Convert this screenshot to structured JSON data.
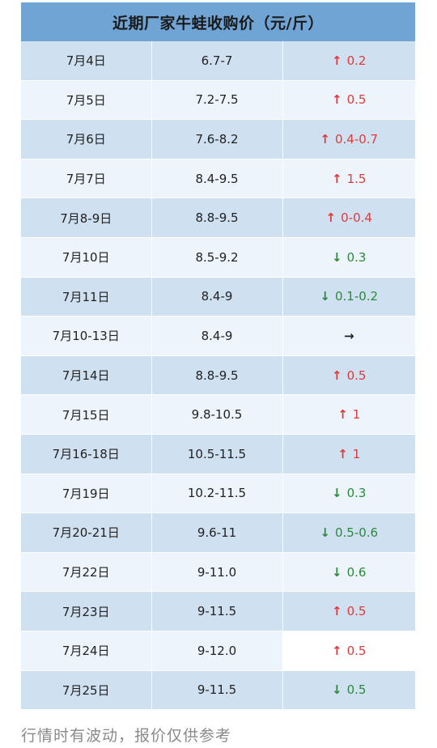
{
  "title": "近期厂家牛蛙收购价（元/斤）",
  "rows": [
    {
      "date": "7月4日",
      "price": "6.7-7",
      "trend": "up",
      "arrow": "↑",
      "change": "0.2"
    },
    {
      "date": "7月5日",
      "price": "7.2-7.5",
      "trend": "up",
      "arrow": "↑",
      "change": "0.5"
    },
    {
      "date": "7月6日",
      "price": "7.6-8.2",
      "trend": "up",
      "arrow": "↑",
      "change": "0.4-0.7"
    },
    {
      "date": "7月7日",
      "price": "8.4-9.5",
      "trend": "up",
      "arrow": "↑",
      "change": "1.5"
    },
    {
      "date": "7月8-9日",
      "price": "8.8-9.5",
      "trend": "up",
      "arrow": "↑",
      "change": "0-0.4"
    },
    {
      "date": "7月10日",
      "price": "8.5-9.2",
      "trend": "down",
      "arrow": "↓",
      "change": "0.3"
    },
    {
      "date": "7月11日",
      "price": "8.4-9",
      "trend": "down",
      "arrow": "↓",
      "change": "0.1-0.2"
    },
    {
      "date": "7月10-13日",
      "price": "8.4-9",
      "trend": "flat",
      "arrow": "→",
      "change": ""
    },
    {
      "date": "7月14日",
      "price": "8.8-9.5",
      "trend": "up",
      "arrow": "↑",
      "change": "0.5"
    },
    {
      "date": "7月15日",
      "price": "9.8-10.5",
      "trend": "up",
      "arrow": "↑",
      "change": "1"
    },
    {
      "date": "7月16-18日",
      "price": "10.5-11.5",
      "trend": "up",
      "arrow": "↑",
      "change": "1"
    },
    {
      "date": "7月19日",
      "price": "10.2-11.5",
      "trend": "down",
      "arrow": "↓",
      "change": "0.3"
    },
    {
      "date": "7月20-21日",
      "price": "9.6-11",
      "trend": "down",
      "arrow": "↓",
      "change": "0.5-0.6"
    },
    {
      "date": "7月22日",
      "price": "9-11.0",
      "trend": "down",
      "arrow": "↓",
      "change": "0.6"
    },
    {
      "date": "7月23日",
      "price": "9-11.5",
      "trend": "up",
      "arrow": "↑",
      "change": "0.5"
    },
    {
      "date": "7月24日",
      "price": "9-12.0",
      "trend": "up",
      "arrow": "↑",
      "change": "0.5"
    },
    {
      "date": "7月25日",
      "price": "9-11.5",
      "trend": "down",
      "arrow": "↓",
      "change": "0.5"
    }
  ],
  "footer": "行情时有波动，报价仅供参考",
  "colors": {
    "up": "#e03a3a",
    "down": "#2a8a3a",
    "header": "#6fa4d4",
    "row_dark": "#cfe0f1",
    "row_light": "#edf4fb"
  }
}
